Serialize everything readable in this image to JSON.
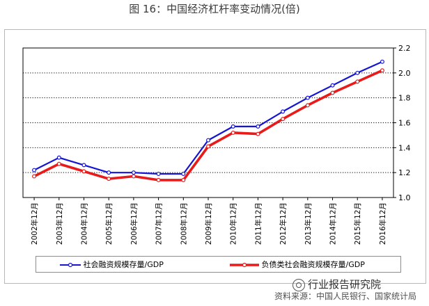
{
  "figure_title": "图 16：中国经济杠杆率变动情况(倍)",
  "source": "资料来源：中国人民银行、国家统计局",
  "watermark": "行业报告研究院",
  "colors": {
    "series1": "#1414d2",
    "series2": "#e81a1a",
    "grid": "#000000",
    "frame": "#b8b8b8"
  },
  "chart_data": {
    "type": "line",
    "title": "",
    "xlabel": "",
    "ylabel": "",
    "ylim": [
      1.0,
      2.2
    ],
    "yticks": [
      "1.0",
      "1.2",
      "1.4",
      "1.6",
      "1.8",
      "2.0",
      "2.2"
    ],
    "y_axis_side": "right",
    "grid": "horizontal dotted",
    "legend_position": "bottom",
    "categories": [
      "2002年12月",
      "2003年12月",
      "2004年12月",
      "2005年12月",
      "2006年12月",
      "2007年12月",
      "2008年12月",
      "2009年12月",
      "2010年12月",
      "2011年12月",
      "2012年12月",
      "2013年12月",
      "2014年12月",
      "2015年12月",
      "2016年12月"
    ],
    "series": [
      {
        "name": "社会融资规模存量/GDP",
        "color": "#1414d2",
        "values": [
          1.22,
          1.32,
          1.26,
          1.2,
          1.2,
          1.19,
          1.19,
          1.46,
          1.57,
          1.57,
          1.69,
          1.8,
          1.9,
          2.0,
          2.09
        ]
      },
      {
        "name": "负债类社会融资规模存量/GDP",
        "color": "#e81a1a",
        "values": [
          1.17,
          1.27,
          1.21,
          1.15,
          1.17,
          1.14,
          1.14,
          1.41,
          1.52,
          1.51,
          1.63,
          1.74,
          1.84,
          1.93,
          2.02
        ]
      }
    ]
  }
}
